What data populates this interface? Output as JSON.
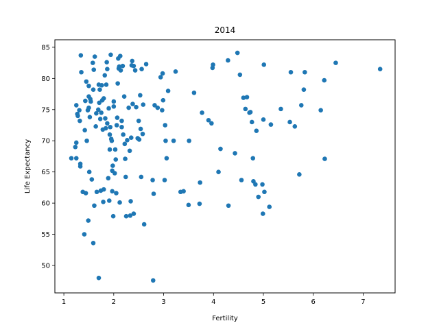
{
  "chart_data": {
    "type": "scatter",
    "title": "2014",
    "xlabel": "Fertility",
    "ylabel": "Life Expectancy",
    "xlim": [
      0.82,
      7.64
    ],
    "ylim": [
      45.6,
      86.2
    ],
    "xticks": [
      1,
      2,
      3,
      4,
      5,
      6,
      7
    ],
    "yticks": [
      50,
      55,
      60,
      65,
      70,
      75,
      80,
      85
    ],
    "grid": false,
    "legend": "none",
    "colors": {
      "marker": "#1f77b4"
    },
    "series": [
      {
        "points": [
          [
            1.15,
            67.2
          ],
          [
            1.23,
            69.0
          ],
          [
            1.25,
            69.7
          ],
          [
            1.25,
            75.7
          ],
          [
            1.25,
            67.2
          ],
          [
            1.27,
            74.3
          ],
          [
            1.28,
            74.0
          ],
          [
            1.31,
            74.9
          ],
          [
            1.32,
            73.2
          ],
          [
            1.33,
            66.3
          ],
          [
            1.33,
            65.9
          ],
          [
            1.34,
            83.7
          ],
          [
            1.35,
            81.0
          ],
          [
            1.38,
            61.8
          ],
          [
            1.41,
            55.0
          ],
          [
            1.42,
            71.7
          ],
          [
            1.43,
            76.4
          ],
          [
            1.44,
            61.6
          ],
          [
            1.45,
            79.5
          ],
          [
            1.46,
            70.0
          ],
          [
            1.48,
            74.9
          ],
          [
            1.49,
            57.2
          ],
          [
            1.5,
            75.3
          ],
          [
            1.5,
            78.8
          ],
          [
            1.5,
            77.1
          ],
          [
            1.51,
            65.0
          ],
          [
            1.52,
            73.8
          ],
          [
            1.53,
            76.7
          ],
          [
            1.54,
            76.3
          ],
          [
            1.56,
            63.8
          ],
          [
            1.58,
            82.5
          ],
          [
            1.59,
            53.6
          ],
          [
            1.59,
            78.2
          ],
          [
            1.6,
            81.4
          ],
          [
            1.61,
            59.6
          ],
          [
            1.62,
            83.5
          ],
          [
            1.64,
            72.3
          ],
          [
            1.65,
            74.4
          ],
          [
            1.66,
            61.8
          ],
          [
            1.69,
            75.0
          ],
          [
            1.7,
            79.0
          ],
          [
            1.7,
            48.0
          ],
          [
            1.71,
            76.1
          ],
          [
            1.72,
            78.2
          ],
          [
            1.73,
            73.5
          ],
          [
            1.74,
            62.0
          ],
          [
            1.75,
            74.5
          ],
          [
            1.76,
            78.9
          ],
          [
            1.77,
            76.5
          ],
          [
            1.78,
            71.8
          ],
          [
            1.79,
            60.2
          ],
          [
            1.8,
            62.2
          ],
          [
            1.8,
            76.8
          ],
          [
            1.82,
            80.5
          ],
          [
            1.83,
            73.6
          ],
          [
            1.84,
            72.0
          ],
          [
            1.85,
            79.0
          ],
          [
            1.86,
            82.6
          ],
          [
            1.87,
            81.5
          ],
          [
            1.87,
            72.8
          ],
          [
            1.89,
            64.0
          ],
          [
            1.9,
            75.2
          ],
          [
            1.91,
            60.4
          ],
          [
            1.92,
            68.6
          ],
          [
            1.92,
            71.0
          ],
          [
            1.93,
            72.2
          ],
          [
            1.94,
            83.8
          ],
          [
            1.95,
            70.3
          ],
          [
            1.96,
            70.0
          ],
          [
            1.97,
            65.2
          ],
          [
            1.97,
            61.9
          ],
          [
            1.98,
            66.0
          ],
          [
            1.99,
            57.9
          ],
          [
            2.0,
            76.3
          ],
          [
            2.0,
            75.5
          ],
          [
            2.02,
            64.8
          ],
          [
            2.03,
            68.6
          ],
          [
            2.04,
            67.0
          ],
          [
            2.05,
            61.6
          ],
          [
            2.06,
            72.5
          ],
          [
            2.07,
            73.7
          ],
          [
            2.08,
            79.2
          ],
          [
            2.09,
            83.2
          ],
          [
            2.1,
            81.6
          ],
          [
            2.11,
            81.9
          ],
          [
            2.12,
            60.1
          ],
          [
            2.13,
            83.6
          ],
          [
            2.14,
            81.3
          ],
          [
            2.16,
            72.2
          ],
          [
            2.16,
            73.2
          ],
          [
            2.18,
            82.0
          ],
          [
            2.19,
            71.0
          ],
          [
            2.21,
            77.1
          ],
          [
            2.22,
            69.5
          ],
          [
            2.23,
            67.1
          ],
          [
            2.24,
            64.2
          ],
          [
            2.25,
            57.9
          ],
          [
            2.27,
            70.1
          ],
          [
            2.3,
            75.3
          ],
          [
            2.32,
            68.4
          ],
          [
            2.33,
            58.0
          ],
          [
            2.34,
            60.3
          ],
          [
            2.35,
            70.5
          ],
          [
            2.36,
            82.1
          ],
          [
            2.37,
            82.8
          ],
          [
            2.38,
            75.9
          ],
          [
            2.4,
            58.3
          ],
          [
            2.4,
            82.0
          ],
          [
            2.43,
            81.3
          ],
          [
            2.45,
            75.4
          ],
          [
            2.48,
            70.4
          ],
          [
            2.5,
            73.2
          ],
          [
            2.51,
            70.2
          ],
          [
            2.53,
            77.3
          ],
          [
            2.54,
            71.9
          ],
          [
            2.55,
            64.2
          ],
          [
            2.56,
            81.5
          ],
          [
            2.58,
            71.1
          ],
          [
            2.59,
            75.8
          ],
          [
            2.61,
            56.6
          ],
          [
            2.65,
            82.3
          ],
          [
            2.78,
            63.7
          ],
          [
            2.79,
            47.6
          ],
          [
            2.8,
            61.5
          ],
          [
            2.82,
            75.7
          ],
          [
            2.88,
            75.3
          ],
          [
            2.94,
            80.2
          ],
          [
            2.97,
            74.9
          ],
          [
            2.98,
            80.8
          ],
          [
            2.99,
            76.5
          ],
          [
            3.02,
            63.7
          ],
          [
            3.03,
            72.5
          ],
          [
            3.04,
            70.0
          ],
          [
            3.06,
            67.2
          ],
          [
            3.09,
            78.0
          ],
          [
            3.2,
            70.0
          ],
          [
            3.24,
            81.1
          ],
          [
            3.34,
            61.8
          ],
          [
            3.4,
            61.9
          ],
          [
            3.5,
            59.7
          ],
          [
            3.51,
            70.0
          ],
          [
            3.61,
            77.7
          ],
          [
            3.72,
            59.9
          ],
          [
            3.73,
            63.3
          ],
          [
            3.77,
            74.5
          ],
          [
            3.9,
            73.3
          ],
          [
            3.96,
            72.8
          ],
          [
            3.98,
            81.7
          ],
          [
            3.99,
            82.2
          ],
          [
            4.1,
            65.0
          ],
          [
            4.14,
            68.7
          ],
          [
            4.29,
            82.9
          ],
          [
            4.3,
            59.6
          ],
          [
            4.43,
            68.0
          ],
          [
            4.48,
            84.1
          ],
          [
            4.53,
            80.6
          ],
          [
            4.56,
            63.7
          ],
          [
            4.6,
            76.9
          ],
          [
            4.64,
            75.1
          ],
          [
            4.67,
            77.0
          ],
          [
            4.72,
            74.5
          ],
          [
            4.74,
            74.6
          ],
          [
            4.77,
            73.0
          ],
          [
            4.79,
            67.2
          ],
          [
            4.8,
            63.5
          ],
          [
            4.84,
            63.0
          ],
          [
            4.86,
            71.6
          ],
          [
            4.9,
            61.0
          ],
          [
            4.98,
            63.0
          ],
          [
            4.99,
            58.3
          ],
          [
            5.0,
            73.4
          ],
          [
            5.01,
            82.2
          ],
          [
            5.02,
            61.8
          ],
          [
            5.12,
            59.4
          ],
          [
            5.15,
            72.6
          ],
          [
            5.35,
            75.1
          ],
          [
            5.53,
            73.0
          ],
          [
            5.55,
            81.0
          ],
          [
            5.63,
            72.3
          ],
          [
            5.72,
            64.6
          ],
          [
            5.76,
            75.7
          ],
          [
            5.81,
            78.2
          ],
          [
            5.83,
            81.0
          ],
          [
            6.15,
            74.9
          ],
          [
            6.22,
            79.7
          ],
          [
            6.23,
            67.1
          ],
          [
            6.45,
            82.5
          ],
          [
            7.34,
            81.5
          ]
        ]
      }
    ]
  }
}
